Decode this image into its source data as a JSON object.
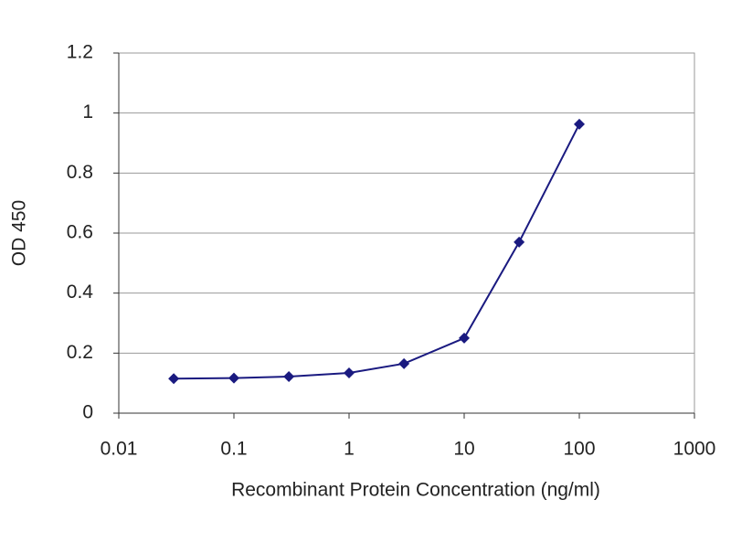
{
  "chart_data": {
    "type": "line",
    "x_label": "Recombinant Protein Concentration (ng/ml)",
    "y_label": "OD 450",
    "x": [
      0.03,
      0.1,
      0.3,
      1,
      3,
      10,
      30,
      100
    ],
    "series": [
      {
        "color": "#1a1a80",
        "values": [
          0.115,
          0.117,
          0.122,
          0.134,
          0.165,
          0.25,
          0.57,
          0.963
        ]
      }
    ],
    "xlim": [
      0.01,
      1000
    ],
    "xticks": [
      0.01,
      0.1,
      1,
      10,
      100,
      1000
    ],
    "x_log": true,
    "ylim": [
      0,
      1.2
    ],
    "yticks": [
      0,
      0.2,
      0.4,
      0.6,
      0.8,
      1,
      1.2
    ],
    "grid": true
  }
}
